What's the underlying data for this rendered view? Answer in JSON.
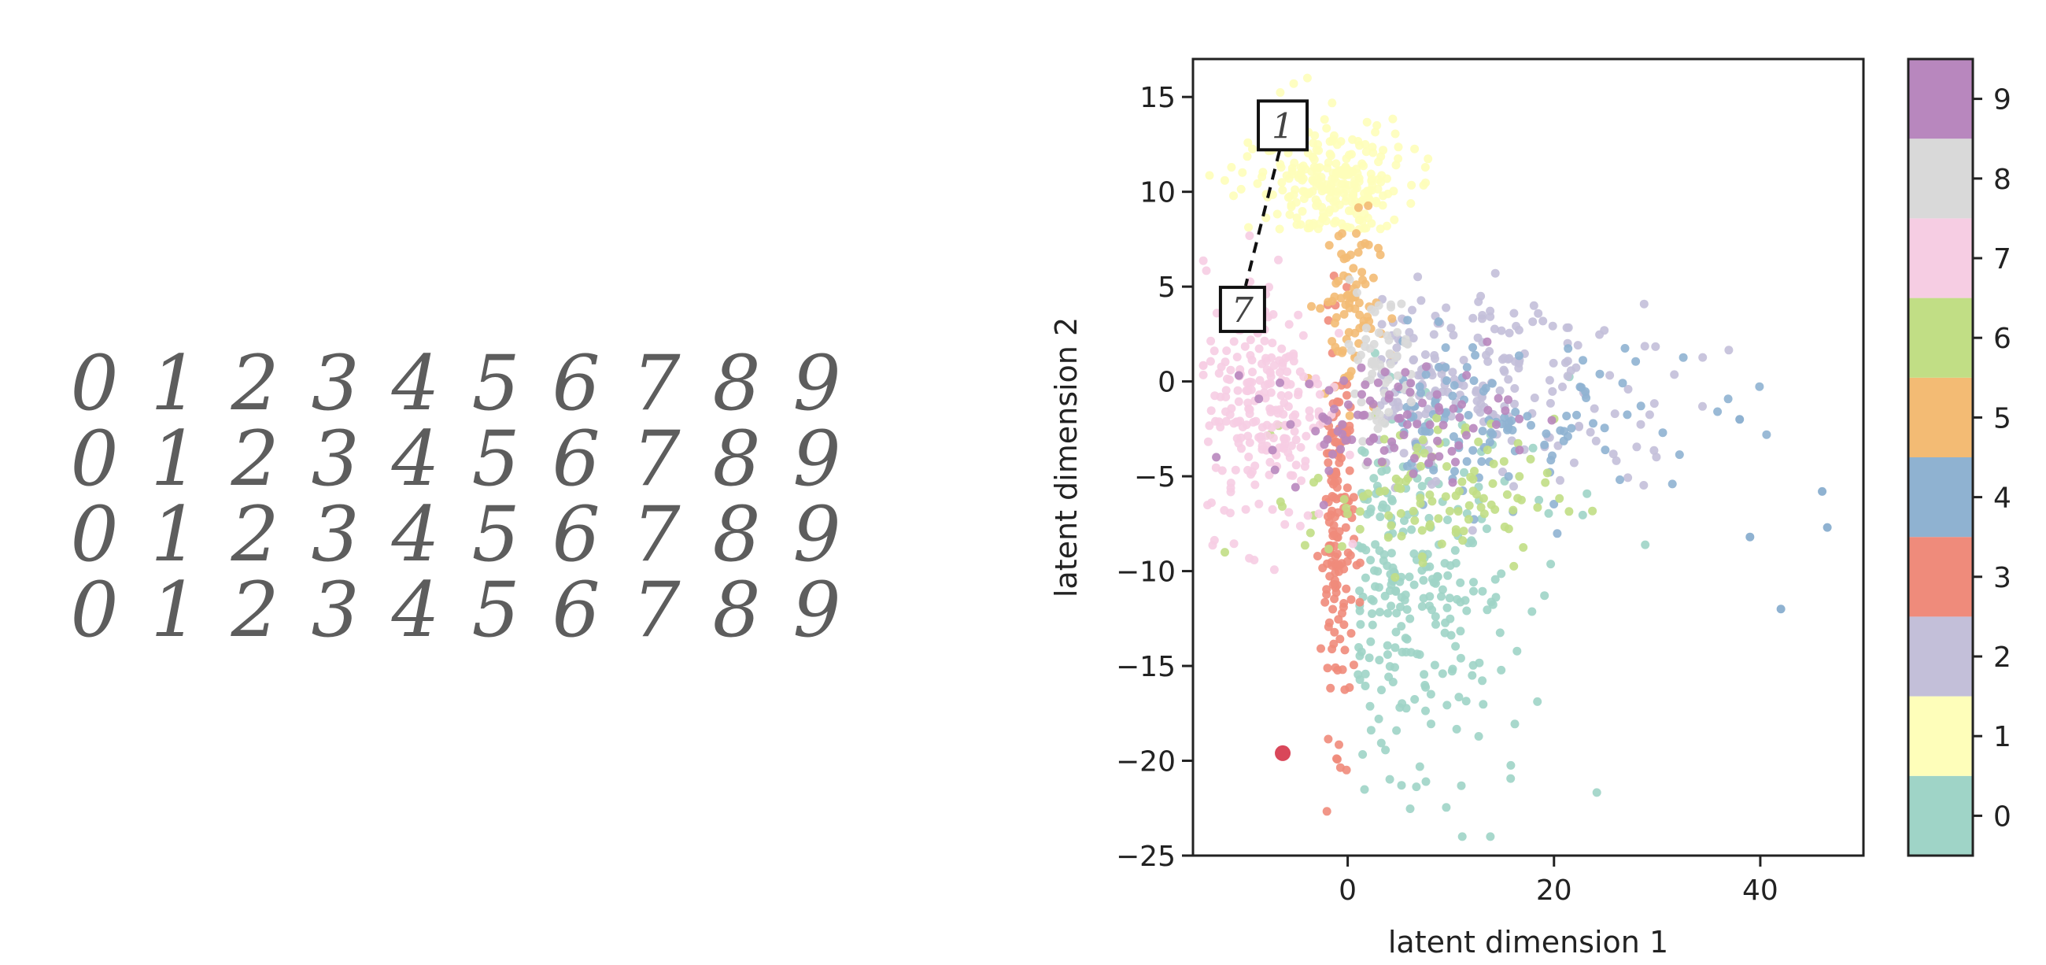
{
  "digit_grid": {
    "rows": [
      [
        "0",
        "1",
        "2",
        "3",
        "4",
        "5",
        "6",
        "7",
        "8",
        "9"
      ],
      [
        "0",
        "1",
        "2",
        "3",
        "4",
        "5",
        "6",
        "7",
        "8",
        "9"
      ],
      [
        "0",
        "1",
        "2",
        "3",
        "4",
        "5",
        "6",
        "7",
        "8",
        "9"
      ],
      [
        "0",
        "1",
        "2",
        "3",
        "4",
        "5",
        "6",
        "7",
        "8",
        "9"
      ]
    ]
  },
  "chart_data": {
    "type": "scatter",
    "xlabel": "latent dimension 1",
    "ylabel": "latent dimension 2",
    "xlim": [
      -15,
      50
    ],
    "ylim": [
      -25,
      17
    ],
    "xticks": [
      0,
      20,
      40
    ],
    "yticks": [
      15,
      10,
      5,
      0,
      -5,
      -10,
      -15,
      -20,
      -25
    ],
    "grid": false,
    "colorbar": {
      "labels": [
        "0",
        "1",
        "2",
        "3",
        "4",
        "5",
        "6",
        "7",
        "8",
        "9"
      ],
      "colors": [
        "#9fd4c7",
        "#fefeba",
        "#c3bfd9",
        "#ef8b7b",
        "#8fb2d1",
        "#f3bb74",
        "#c1de85",
        "#f6cde3",
        "#d9d9d9",
        "#b887be"
      ]
    },
    "clusters": [
      {
        "digit": "0",
        "color": "#9fd4c7",
        "center": [
          5,
          -11
        ],
        "spread": [
          5,
          5
        ]
      },
      {
        "digit": "1",
        "color": "#fefeba",
        "center": [
          -2,
          9
        ],
        "spread": [
          4,
          3
        ]
      },
      {
        "digit": "2",
        "color": "#c3bfd9",
        "center": [
          10,
          0
        ],
        "spread": [
          8,
          2.5
        ]
      },
      {
        "digit": "3",
        "color": "#ef8b7b",
        "center": [
          -1,
          -8
        ],
        "spread": [
          0.8,
          5
        ]
      },
      {
        "digit": "4",
        "color": "#8fb2d1",
        "center": [
          12,
          -2
        ],
        "spread": [
          8,
          2
        ]
      },
      {
        "digit": "5",
        "color": "#f3bb74",
        "center": [
          0,
          4
        ],
        "spread": [
          1.5,
          2.5
        ]
      },
      {
        "digit": "6",
        "color": "#c1de85",
        "center": [
          8,
          -6
        ],
        "spread": [
          6,
          2
        ]
      },
      {
        "digit": "7",
        "color": "#f6cde3",
        "center": [
          -8,
          -1
        ],
        "spread": [
          3,
          3.5
        ]
      },
      {
        "digit": "8",
        "color": "#d9d9d9",
        "center": [
          3,
          1
        ],
        "spread": [
          2,
          2
        ]
      },
      {
        "digit": "9",
        "color": "#b887be",
        "center": [
          4,
          -2
        ],
        "spread": [
          6,
          1.5
        ]
      }
    ],
    "outliers": [
      {
        "x": -6.3,
        "y": -19.6,
        "color": "#d9475a"
      },
      {
        "x": 38,
        "y": -2,
        "color": "#8fb2d1"
      },
      {
        "x": 42,
        "y": -12,
        "color": "#8fb2d1"
      },
      {
        "x": 46,
        "y": -5.8,
        "color": "#8fb2d1"
      },
      {
        "x": 46.5,
        "y": -7.7,
        "color": "#8fb2d1"
      },
      {
        "x": 39,
        "y": -8.2,
        "color": "#8fb2d1"
      }
    ],
    "annotations": [
      {
        "label": "1",
        "x": -6.3,
        "y": 13.5
      },
      {
        "label": "7",
        "x": -10.2,
        "y": 3.8
      }
    ]
  }
}
